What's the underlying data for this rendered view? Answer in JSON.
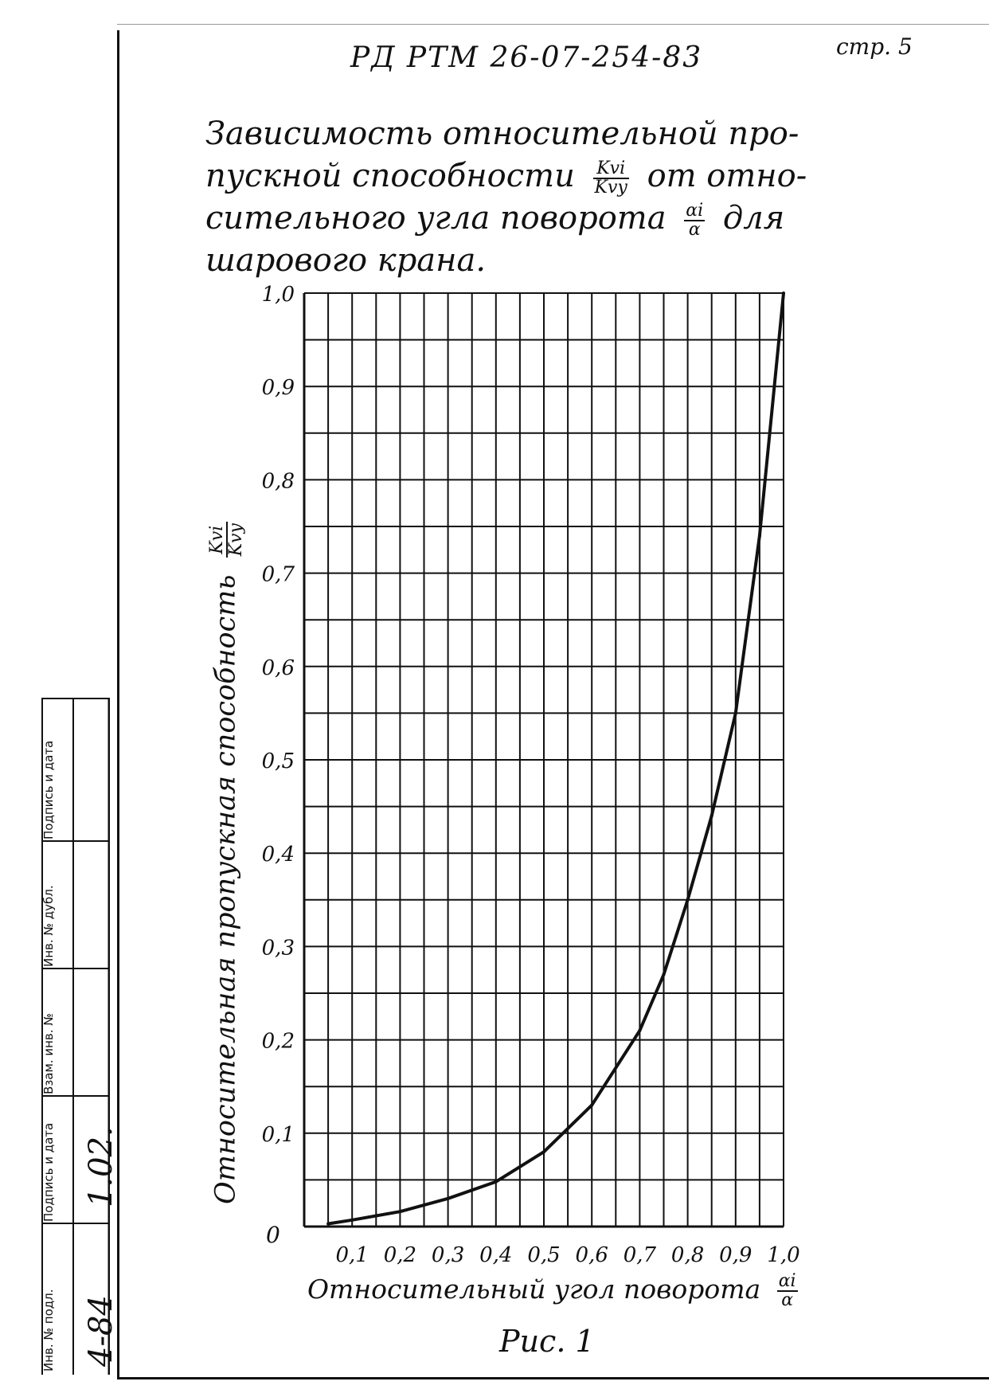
{
  "header": {
    "doc_code": "РД  РТМ 26-07-254-83",
    "page_no": "стр. 5"
  },
  "title": {
    "text_1": "Зависимость относительной про-",
    "text_2": "пускной способности",
    "frac1_num": "Kvi",
    "frac1_den": "Kvy",
    "text_3": "от отно-",
    "text_4": "сительного угла поворота",
    "frac2_num": "αi",
    "frac2_den": "α",
    "text_5": "для",
    "text_6": "шарового крана."
  },
  "chart_data": {
    "type": "line",
    "x_ticks": [
      "0,1",
      "0,2",
      "0,3",
      "0,4",
      "0,5",
      "0,6",
      "0,7",
      "0,8",
      "0,9",
      "1,0"
    ],
    "y_ticks": [
      "0,1",
      "0,2",
      "0,3",
      "0,4",
      "0,5",
      "0,6",
      "0,7",
      "0,8",
      "0,9",
      "1,0"
    ],
    "origin_label": "0",
    "xlabel": "Относительный угол поворота",
    "xlabel_frac": {
      "num": "αi",
      "den": "α"
    },
    "ylabel": "Относительная пропускная способность",
    "ylabel_frac": {
      "num": "Kvi",
      "den": "Kvy"
    },
    "xlim": [
      0,
      1.0
    ],
    "ylim": [
      0,
      1.0
    ],
    "grid": true,
    "series": [
      {
        "x": [
          0.05,
          0.1,
          0.2,
          0.3,
          0.4,
          0.5,
          0.6,
          0.7,
          0.75,
          0.8,
          0.85,
          0.9,
          0.95,
          1.0
        ],
        "y": [
          0.003,
          0.007,
          0.016,
          0.03,
          0.048,
          0.08,
          0.13,
          0.21,
          0.27,
          0.35,
          0.44,
          0.55,
          0.74,
          1.0
        ]
      }
    ]
  },
  "stamp": {
    "labels": [
      "Инв. № подл.",
      "Подпись и дата",
      "Взам. инв. №",
      "Инв. № дубл.",
      "Подпись и дата"
    ],
    "inv_value": "4-84",
    "date_value": "1.02."
  },
  "caption": "Рис. 1"
}
